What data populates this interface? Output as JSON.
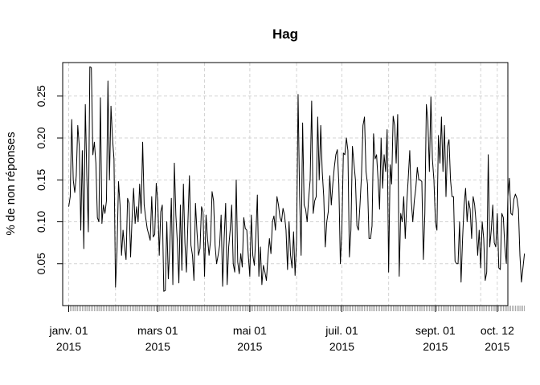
{
  "chart_data": {
    "type": "line",
    "title": "Hag",
    "xlabel": "",
    "ylabel": "% de non réponses",
    "ylim": [
      0.0,
      0.29
    ],
    "y_ticks": [
      0.05,
      0.1,
      0.15,
      0.2,
      0.25
    ],
    "y_tick_labels": [
      "0.05",
      "0.10",
      "0.15",
      "0.20",
      "0.25"
    ],
    "x_range": [
      "2014-12-28",
      "2015-10-19"
    ],
    "x_ticks": [
      {
        "date": "2015-01-01",
        "line1": "janv. 01",
        "line2": "2015"
      },
      {
        "date": "2015-03-01",
        "line1": "mars 01",
        "line2": "2015"
      },
      {
        "date": "2015-05-01",
        "line1": "mai 01",
        "line2": "2015"
      },
      {
        "date": "2015-07-01",
        "line1": "juil. 01",
        "line2": "2015"
      },
      {
        "date": "2015-09-01",
        "line1": "sept. 01",
        "line2": "2015"
      },
      {
        "date": "2015-10-12",
        "line1": "oct. 12",
        "line2": "2015"
      }
    ],
    "grid_x_dates": [
      "2015-01-01",
      "2015-02-01",
      "2015-03-01",
      "2015-04-01",
      "2015-05-01",
      "2015-06-01",
      "2015-07-01",
      "2015-08-01",
      "2015-09-01",
      "2015-10-01",
      "2015-10-12"
    ],
    "grid_y": [
      0.05,
      0.1,
      0.15,
      0.2,
      0.25
    ],
    "grid": true,
    "series": [
      {
        "color": "#000000",
        "start_date": "2015-01-01",
        "values": [
          0.118,
          0.13,
          0.222,
          0.15,
          0.135,
          0.155,
          0.215,
          0.19,
          0.09,
          0.185,
          0.068,
          0.24,
          0.155,
          0.088,
          0.285,
          0.284,
          0.18,
          0.195,
          0.17,
          0.105,
          0.1,
          0.248,
          0.098,
          0.12,
          0.11,
          0.125,
          0.268,
          0.15,
          0.238,
          0.2,
          0.175,
          0.022,
          0.065,
          0.148,
          0.12,
          0.06,
          0.09,
          0.07,
          0.055,
          0.128,
          0.122,
          0.058,
          0.105,
          0.14,
          0.098,
          0.118,
          0.1,
          0.145,
          0.11,
          0.195,
          0.12,
          0.105,
          0.092,
          0.085,
          0.078,
          0.13,
          0.082,
          0.085,
          0.146,
          0.125,
          0.06,
          0.112,
          0.12,
          0.017,
          0.018,
          0.1,
          0.032,
          0.07,
          0.128,
          0.025,
          0.17,
          0.108,
          0.075,
          0.027,
          0.12,
          0.042,
          0.145,
          0.075,
          0.04,
          0.1,
          0.155,
          0.072,
          0.06,
          0.03,
          0.122,
          0.088,
          0.06,
          0.068,
          0.118,
          0.112,
          0.035,
          0.108,
          0.08,
          0.06,
          0.078,
          0.136,
          0.125,
          0.072,
          0.05,
          0.06,
          0.072,
          0.108,
          0.023,
          0.08,
          0.122,
          0.025,
          0.07,
          0.09,
          0.12,
          0.05,
          0.04,
          0.15,
          0.052,
          0.038,
          0.062,
          0.046,
          0.105,
          0.092,
          0.09,
          0.06,
          0.035,
          0.108,
          0.06,
          0.048,
          0.083,
          0.132,
          0.035,
          0.07,
          0.025,
          0.048,
          0.04,
          0.03,
          0.058,
          0.08,
          0.062,
          0.1,
          0.107,
          0.09,
          0.13,
          0.12,
          0.105,
          0.1,
          0.116,
          0.108,
          0.09,
          0.043,
          0.1,
          0.06,
          0.045,
          0.088,
          0.036,
          0.078,
          0.252,
          0.13,
          0.06,
          0.218,
          0.12,
          0.115,
          0.1,
          0.128,
          0.15,
          0.244,
          0.11,
          0.125,
          0.13,
          0.225,
          0.15,
          0.215,
          0.16,
          0.13,
          0.07,
          0.1,
          0.112,
          0.155,
          0.12,
          0.145,
          0.165,
          0.18,
          0.186,
          0.145,
          0.05,
          0.09,
          0.182,
          0.18,
          0.2,
          0.185,
          0.058,
          0.09,
          0.19,
          0.17,
          0.15,
          0.095,
          0.09,
          0.12,
          0.155,
          0.215,
          0.225,
          0.16,
          0.145,
          0.08,
          0.08,
          0.095,
          0.205,
          0.175,
          0.18,
          0.15,
          0.115,
          0.2,
          0.14,
          0.18,
          0.16,
          0.21,
          0.04,
          0.168,
          0.145,
          0.226,
          0.215,
          0.17,
          0.228,
          0.035,
          0.11,
          0.1,
          0.13,
          0.08,
          0.122,
          0.152,
          0.185,
          0.125,
          0.1,
          0.125,
          0.14,
          0.165,
          0.15,
          0.15,
          0.148,
          0.055,
          0.11,
          0.24,
          0.22,
          0.16,
          0.249,
          0.175,
          0.15,
          0.1,
          0.09,
          0.203,
          0.17,
          0.225,
          0.16,
          0.215,
          0.13,
          0.19,
          0.198,
          0.15,
          0.13,
          0.13,
          0.053,
          0.05,
          0.05,
          0.1,
          0.028,
          0.08,
          0.12,
          0.14,
          0.1,
          0.125,
          0.115,
          0.08,
          0.13,
          0.12,
          0.098,
          0.06,
          0.09,
          0.045,
          0.1,
          0.08,
          0.03,
          0.04,
          0.18,
          0.07,
          0.09,
          0.12,
          0.075,
          0.07,
          0.11,
          0.045,
          0.043,
          0.11,
          0.105,
          0.07,
          0.05,
          0.13,
          0.152,
          0.11,
          0.108,
          0.127,
          0.133,
          0.128,
          0.115,
          0.06,
          0.028,
          0.045,
          0.062
        ]
      }
    ]
  }
}
